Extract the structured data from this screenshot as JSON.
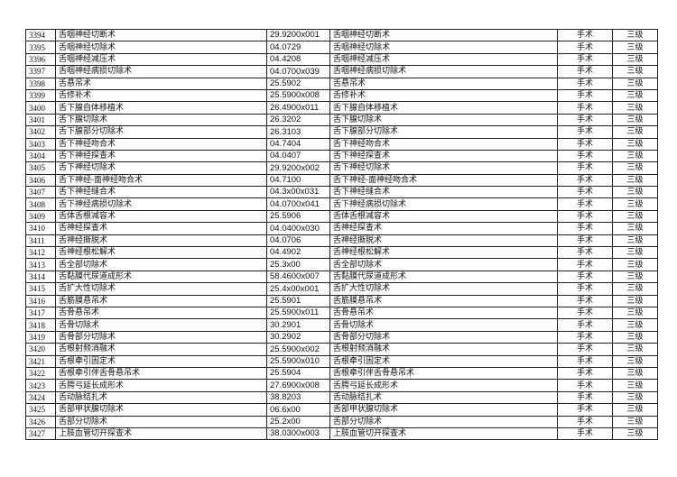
{
  "rows": [
    [
      "3394",
      "舌咽神经切断术",
      "29.9200x001",
      "舌咽神经切断术",
      "手术",
      "三级"
    ],
    [
      "3395",
      "舌咽神经切除术",
      "04.0729",
      "舌咽神经切除术",
      "手术",
      "三级"
    ],
    [
      "3396",
      "舌咽神经减压术",
      "04.4208",
      "舌咽神经减压术",
      "手术",
      "三级"
    ],
    [
      "3397",
      "舌咽神经病损切除术",
      "04.0700x039",
      "舌咽神经病损切除术",
      "手术",
      "三级"
    ],
    [
      "3398",
      "舌悬吊术",
      "25.5902",
      "舌悬吊术",
      "手术",
      "三级"
    ],
    [
      "3399",
      "舌修补术",
      "25.5900x008",
      "舌修补术",
      "手术",
      "三级"
    ],
    [
      "3400",
      "舌下腺自体移植术",
      "26.4900x011",
      "舌下腺自体移植术",
      "手术",
      "三级"
    ],
    [
      "3401",
      "舌下腺切除术",
      "26.3202",
      "舌下腺切除术",
      "手术",
      "三级"
    ],
    [
      "3402",
      "舌下腺部分切除术",
      "26.3103",
      "舌下腺部分切除术",
      "手术",
      "三级"
    ],
    [
      "3403",
      "舌下神经吻合术",
      "04.7404",
      "舌下神经吻合术",
      "手术",
      "三级"
    ],
    [
      "3404",
      "舌下神经探查术",
      "04.0407",
      "舌下神经探查术",
      "手术",
      "三级"
    ],
    [
      "3405",
      "舌下神经切除术",
      "29.9200x002",
      "舌下神经切除术",
      "手术",
      "三级"
    ],
    [
      "3406",
      "舌下神经-面神经吻合术",
      "04.7100",
      "舌下神经-面神经吻合术",
      "手术",
      "三级"
    ],
    [
      "3407",
      "舌下神经缝合术",
      "04.3x00x031",
      "舌下神经缝合术",
      "手术",
      "三级"
    ],
    [
      "3408",
      "舌下神经病损切除术",
      "04.0700x041",
      "舌下神经病损切除术",
      "手术",
      "三级"
    ],
    [
      "3409",
      "舌体舌根减容术",
      "25.5906",
      "舌体舌根减容术",
      "手术",
      "三级"
    ],
    [
      "3410",
      "舌神经探查术",
      "04.0400x030",
      "舌神经探查术",
      "手术",
      "三级"
    ],
    [
      "3411",
      "舌神经撕脱术",
      "04.0706",
      "舌神经撕脱术",
      "手术",
      "三级"
    ],
    [
      "3412",
      "舌神经根松解术",
      "04.4902",
      "舌神经根松解术",
      "手术",
      "三级"
    ],
    [
      "3413",
      "舌全部切除术",
      "25.3x00",
      "舌全部切除术",
      "手术",
      "三级"
    ],
    [
      "3414",
      "舌黏膜代尿道成形术",
      "58.4600x007",
      "舌黏膜代尿道成形术",
      "手术",
      "三级"
    ],
    [
      "3415",
      "舌扩大性切除术",
      "25.4x00x001",
      "舌扩大性切除术",
      "手术",
      "三级"
    ],
    [
      "3416",
      "舌筋膜悬吊术",
      "25.5901",
      "舌筋膜悬吊术",
      "手术",
      "三级"
    ],
    [
      "3417",
      "舌骨悬吊术",
      "25.5900x011",
      "舌骨悬吊术",
      "手术",
      "三级"
    ],
    [
      "3418",
      "舌骨切除术",
      "30.2901",
      "舌骨切除术",
      "手术",
      "三级"
    ],
    [
      "3419",
      "舌骨部分切除术",
      "30.2902",
      "舌骨部分切除术",
      "手术",
      "三级"
    ],
    [
      "3420",
      "舌根射频消融术",
      "25.5900x002",
      "舌根射频消融术",
      "手术",
      "三级"
    ],
    [
      "3421",
      "舌根牵引固定术",
      "25.5900x010",
      "舌根牵引固定术",
      "手术",
      "三级"
    ],
    [
      "3422",
      "舌根牵引伴舌骨悬吊术",
      "25.5904",
      "舌根牵引伴舌骨悬吊术",
      "手术",
      "三级"
    ],
    [
      "3423",
      "舌腭弓延长成形术",
      "27.6900x008",
      "舌腭弓延长成形术",
      "手术",
      "三级"
    ],
    [
      "3424",
      "舌动脉结扎术",
      "38.8203",
      "舌动脉结扎术",
      "手术",
      "三级"
    ],
    [
      "3425",
      "舌部甲状腺切除术",
      "06.6x00",
      "舌部甲状腺切除术",
      "手术",
      "三级"
    ],
    [
      "3426",
      "舌部分切除术",
      "25.2x00",
      "舌部分切除术",
      "手术",
      "三级"
    ],
    [
      "3427",
      "上肢血管切开探查术",
      "38.0300x003",
      "上肢血管切开探查术",
      "手术",
      "三级"
    ]
  ]
}
